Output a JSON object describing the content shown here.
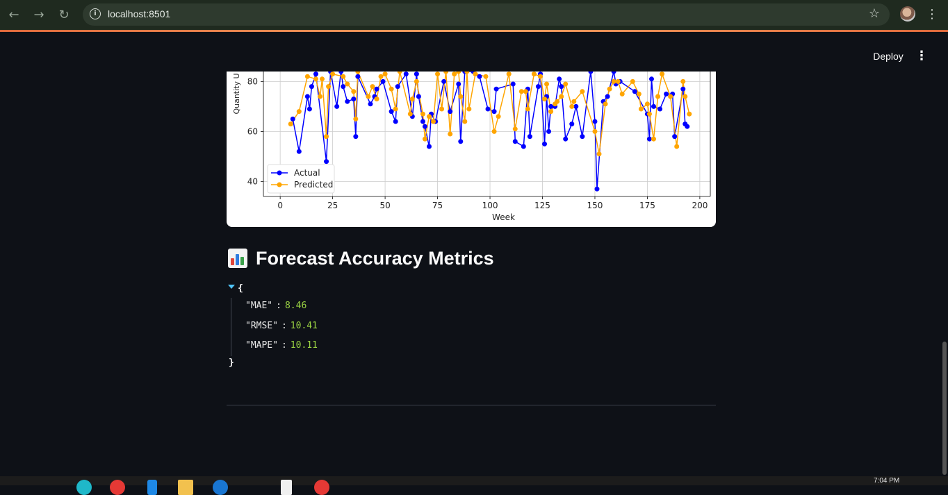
{
  "browser": {
    "url": "localhost:8501",
    "icons": [
      "back-arrow-icon",
      "forward-arrow-icon",
      "reload-icon",
      "info-icon",
      "star-icon",
      "kebab-menu-icon"
    ]
  },
  "app_header": {
    "deploy_label": "Deploy",
    "menu_icon": "kebab-menu-icon"
  },
  "chart_data": {
    "type": "line",
    "xlabel": "Week",
    "ylabel": "Quantity U",
    "xlim": [
      -8,
      205
    ],
    "ylim": [
      34,
      84
    ],
    "x_ticks": [
      0,
      25,
      50,
      75,
      100,
      125,
      150,
      175,
      200
    ],
    "y_ticks": [
      40,
      60,
      80
    ],
    "grid": true,
    "legend": "lower-left",
    "series": [
      {
        "name": "Actual",
        "color": "#0000ff",
        "points": [
          [
            6,
            65
          ],
          [
            9,
            52
          ],
          [
            13,
            74
          ],
          [
            14,
            69
          ],
          [
            15,
            78
          ],
          [
            17,
            83
          ],
          [
            22,
            48
          ],
          [
            24,
            84
          ],
          [
            27,
            70
          ],
          [
            29,
            84
          ],
          [
            30,
            78
          ],
          [
            32,
            72
          ],
          [
            35,
            73
          ],
          [
            36,
            58
          ],
          [
            37,
            82
          ],
          [
            43,
            71
          ],
          [
            45,
            74
          ],
          [
            46,
            77
          ],
          [
            49,
            80
          ],
          [
            53,
            68
          ],
          [
            55,
            64
          ],
          [
            56,
            78
          ],
          [
            60,
            83
          ],
          [
            63,
            66
          ],
          [
            65,
            83
          ],
          [
            66,
            74
          ],
          [
            68,
            64
          ],
          [
            69,
            62
          ],
          [
            71,
            54
          ],
          [
            72,
            67
          ],
          [
            74,
            64
          ],
          [
            78,
            80
          ],
          [
            81,
            68
          ],
          [
            85,
            79
          ],
          [
            86,
            56
          ],
          [
            88,
            84
          ],
          [
            92,
            84
          ],
          [
            95,
            82
          ],
          [
            99,
            69
          ],
          [
            102,
            68
          ],
          [
            103,
            77
          ],
          [
            111,
            79
          ],
          [
            112,
            56
          ],
          [
            116,
            54
          ],
          [
            118,
            77
          ],
          [
            119,
            58
          ],
          [
            123,
            78
          ],
          [
            124,
            83
          ],
          [
            126,
            55
          ],
          [
            127,
            74
          ],
          [
            128,
            60
          ],
          [
            129,
            70
          ],
          [
            131,
            70
          ],
          [
            133,
            81
          ],
          [
            134,
            78
          ],
          [
            136,
            57
          ],
          [
            139,
            63
          ],
          [
            141,
            70
          ],
          [
            144,
            58
          ],
          [
            148,
            84
          ],
          [
            150,
            64
          ],
          [
            151,
            37
          ],
          [
            154,
            72
          ],
          [
            156,
            74
          ],
          [
            159,
            84
          ],
          [
            160,
            79
          ],
          [
            162,
            80
          ],
          [
            169,
            76
          ],
          [
            175,
            67
          ],
          [
            176,
            57
          ],
          [
            177,
            81
          ],
          [
            178,
            70
          ],
          [
            181,
            69
          ],
          [
            184,
            75
          ],
          [
            187,
            75
          ],
          [
            188,
            58
          ],
          [
            192,
            77
          ],
          [
            193,
            63
          ],
          [
            194,
            62
          ]
        ]
      },
      {
        "name": "Predicted",
        "color": "#ffa500",
        "points": [
          [
            5,
            63
          ],
          [
            9,
            68
          ],
          [
            13,
            82
          ],
          [
            17,
            81
          ],
          [
            19,
            74
          ],
          [
            20,
            81
          ],
          [
            22,
            58
          ],
          [
            23,
            78
          ],
          [
            25,
            83
          ],
          [
            30,
            82
          ],
          [
            32,
            79
          ],
          [
            35,
            76
          ],
          [
            36,
            65
          ],
          [
            37,
            84
          ],
          [
            42,
            74
          ],
          [
            44,
            78
          ],
          [
            46,
            73
          ],
          [
            48,
            82
          ],
          [
            50,
            83
          ],
          [
            53,
            77
          ],
          [
            55,
            69
          ],
          [
            57,
            84
          ],
          [
            62,
            67
          ],
          [
            63,
            73
          ],
          [
            65,
            80
          ],
          [
            68,
            67
          ],
          [
            69,
            57
          ],
          [
            71,
            66
          ],
          [
            73,
            64
          ],
          [
            75,
            83
          ],
          [
            77,
            69
          ],
          [
            79,
            84
          ],
          [
            81,
            59
          ],
          [
            83,
            83
          ],
          [
            85,
            84
          ],
          [
            86,
            74
          ],
          [
            88,
            64
          ],
          [
            89,
            84
          ],
          [
            90,
            69
          ],
          [
            93,
            83
          ],
          [
            98,
            82
          ],
          [
            102,
            60
          ],
          [
            104,
            66
          ],
          [
            109,
            83
          ],
          [
            112,
            61
          ],
          [
            115,
            76
          ],
          [
            117,
            76
          ],
          [
            118,
            69
          ],
          [
            121,
            83
          ],
          [
            124,
            82
          ],
          [
            126,
            73
          ],
          [
            127,
            79
          ],
          [
            129,
            68
          ],
          [
            131,
            71
          ],
          [
            132,
            72
          ],
          [
            134,
            74
          ],
          [
            136,
            79
          ],
          [
            139,
            70
          ],
          [
            140,
            72
          ],
          [
            144,
            76
          ],
          [
            150,
            60
          ],
          [
            152,
            51
          ],
          [
            155,
            71
          ],
          [
            157,
            77
          ],
          [
            159,
            80
          ],
          [
            161,
            80
          ],
          [
            163,
            75
          ],
          [
            168,
            80
          ],
          [
            171,
            75
          ],
          [
            172,
            69
          ],
          [
            175,
            71
          ],
          [
            176,
            67
          ],
          [
            178,
            57
          ],
          [
            180,
            74
          ],
          [
            182,
            83
          ],
          [
            186,
            74
          ],
          [
            189,
            54
          ],
          [
            192,
            80
          ],
          [
            193,
            74
          ],
          [
            195,
            67
          ]
        ]
      }
    ]
  },
  "section": {
    "icon": "bar-chart-icon",
    "title": "Forecast Accuracy Metrics"
  },
  "metrics": [
    {
      "key": "\"MAE\"",
      "value": "8.46"
    },
    {
      "key": "\"RMSE\"",
      "value": "10.41"
    },
    {
      "key": "\"MAPE\"",
      "value": "10.11"
    }
  ],
  "json_braces": {
    "open": "{",
    "close": "}"
  },
  "taskbar": {
    "time": "7:04 PM"
  }
}
